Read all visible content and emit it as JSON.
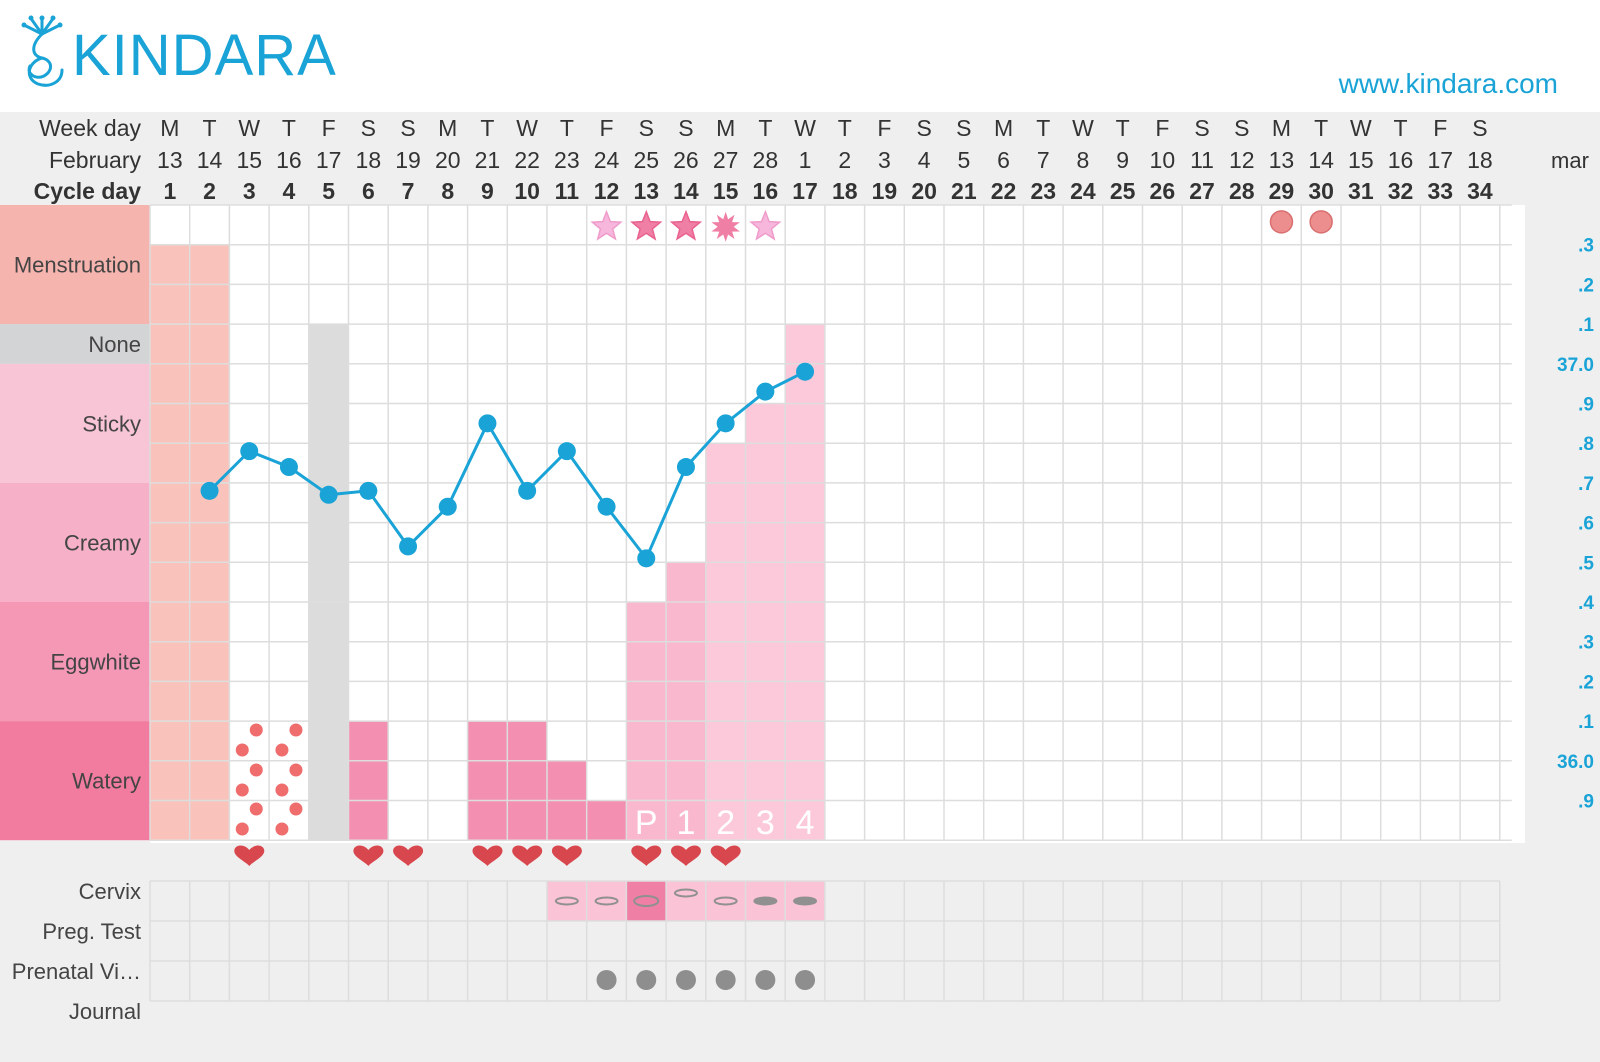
{
  "brand": {
    "logo_text": "KINDARA",
    "website": "www.kindara.com"
  },
  "header_labels": {
    "weekday": "Week day",
    "month": "February",
    "cycle": "Cycle day",
    "next_month": "mar"
  },
  "weekdays": [
    "M",
    "T",
    "W",
    "T",
    "F",
    "S",
    "S",
    "M",
    "T",
    "W",
    "T",
    "F",
    "S",
    "S",
    "M",
    "T",
    "W",
    "T",
    "F",
    "S",
    "S",
    "M",
    "T",
    "W",
    "T",
    "F",
    "S",
    "S",
    "M",
    "T",
    "W",
    "T",
    "F",
    "S"
  ],
  "dates": [
    "13",
    "14",
    "15",
    "16",
    "17",
    "18",
    "19",
    "20",
    "21",
    "22",
    "23",
    "24",
    "25",
    "26",
    "27",
    "28",
    "1",
    "2",
    "3",
    "4",
    "5",
    "6",
    "7",
    "8",
    "9",
    "10",
    "11",
    "12",
    "13",
    "14",
    "15",
    "16",
    "17",
    "18"
  ],
  "cycle_days": [
    "1",
    "2",
    "3",
    "4",
    "5",
    "6",
    "7",
    "8",
    "9",
    "10",
    "11",
    "12",
    "13",
    "14",
    "15",
    "16",
    "17",
    "18",
    "19",
    "20",
    "21",
    "22",
    "23",
    "24",
    "25",
    "26",
    "27",
    "28",
    "29",
    "30",
    "31",
    "32",
    "33",
    "34"
  ],
  "fluid_labels": [
    "Menstruation",
    "None",
    "Sticky",
    "Creamy",
    "Eggwhite",
    "Watery"
  ],
  "bottom_labels": [
    "Cervix",
    "Preg. Test",
    "Prenatal Vi…",
    "Journal"
  ],
  "temp_axis_labels": [
    ".3",
    ".2",
    ".1",
    "37.0",
    ".9",
    ".8",
    ".7",
    ".6",
    ".5",
    ".4",
    ".3",
    ".2",
    ".1",
    "36.0",
    ".9"
  ],
  "peak_labels": [
    "P",
    "1",
    "2",
    "3",
    "4"
  ],
  "colors": {
    "accent": "#1aa3d6",
    "menstruation": "#f9c3bb",
    "none": "#dcdcdc",
    "fluid_watery": "#f38fb0",
    "fluid_light": "#f9b8cd",
    "fluid_lighter": "#fbc9da",
    "heart": "#d9474e",
    "spotting": "#ef6d6d",
    "dot_gray": "#8e8e8e"
  },
  "chart_data": {
    "type": "line",
    "title": "",
    "xlabel": "Cycle day",
    "ylabel": "",
    "ylim": [
      35.85,
      37.35
    ],
    "x": [
      1,
      2,
      3,
      4,
      5,
      6,
      7,
      8,
      9,
      10,
      11,
      12,
      13,
      14,
      15,
      16,
      17,
      18,
      19,
      20,
      21,
      22,
      23,
      24,
      25,
      26,
      27,
      28,
      29,
      30,
      31,
      32,
      33,
      34
    ],
    "series": [
      {
        "name": "",
        "values": [
          null,
          36.68,
          36.78,
          36.74,
          36.67,
          36.68,
          36.54,
          36.64,
          36.85,
          36.68,
          36.78,
          36.64,
          36.51,
          36.74,
          36.85,
          36.93,
          36.98,
          null,
          null,
          null,
          null,
          null,
          null,
          null,
          null,
          null,
          null,
          null,
          null,
          null,
          null,
          null,
          null,
          null
        ]
      }
    ],
    "menstruation_days": [
      1,
      2
    ],
    "none_days": [
      5
    ],
    "fluid_bars": [
      {
        "day": 6,
        "level": 3,
        "color": "fluid_watery"
      },
      {
        "day": 9,
        "level": 3,
        "color": "fluid_watery"
      },
      {
        "day": 10,
        "level": 3,
        "color": "fluid_watery"
      },
      {
        "day": 11,
        "level": 2,
        "color": "fluid_watery"
      },
      {
        "day": 12,
        "level": 1,
        "color": "fluid_watery"
      },
      {
        "day": 13,
        "level": 6,
        "color": "fluid_light"
      },
      {
        "day": 14,
        "level": 7,
        "color": "fluid_light"
      },
      {
        "day": 15,
        "level": 10,
        "color": "fluid_lighter"
      },
      {
        "day": 16,
        "level": 11,
        "color": "fluid_lighter"
      },
      {
        "day": 17,
        "level": 13,
        "color": "fluid_lighter"
      }
    ],
    "spotting_days": [
      3,
      4
    ],
    "stars": [
      {
        "day": 12,
        "style": "light"
      },
      {
        "day": 13,
        "style": "dark"
      },
      {
        "day": 14,
        "style": "dark"
      },
      {
        "day": 15,
        "style": "burst"
      },
      {
        "day": 16,
        "style": "light"
      }
    ],
    "circle_markers": [
      29,
      30
    ],
    "heart_days": [
      3,
      6,
      7,
      9,
      10,
      11,
      13,
      14,
      15
    ],
    "peak_days": [
      13,
      14,
      15,
      16,
      17
    ],
    "cervix_days": [
      11,
      12,
      13,
      14,
      15,
      16,
      17
    ],
    "cervix_highlight_day": 13,
    "prenatal_vitamin_days": [
      12,
      13,
      14,
      15,
      16,
      17
    ]
  }
}
